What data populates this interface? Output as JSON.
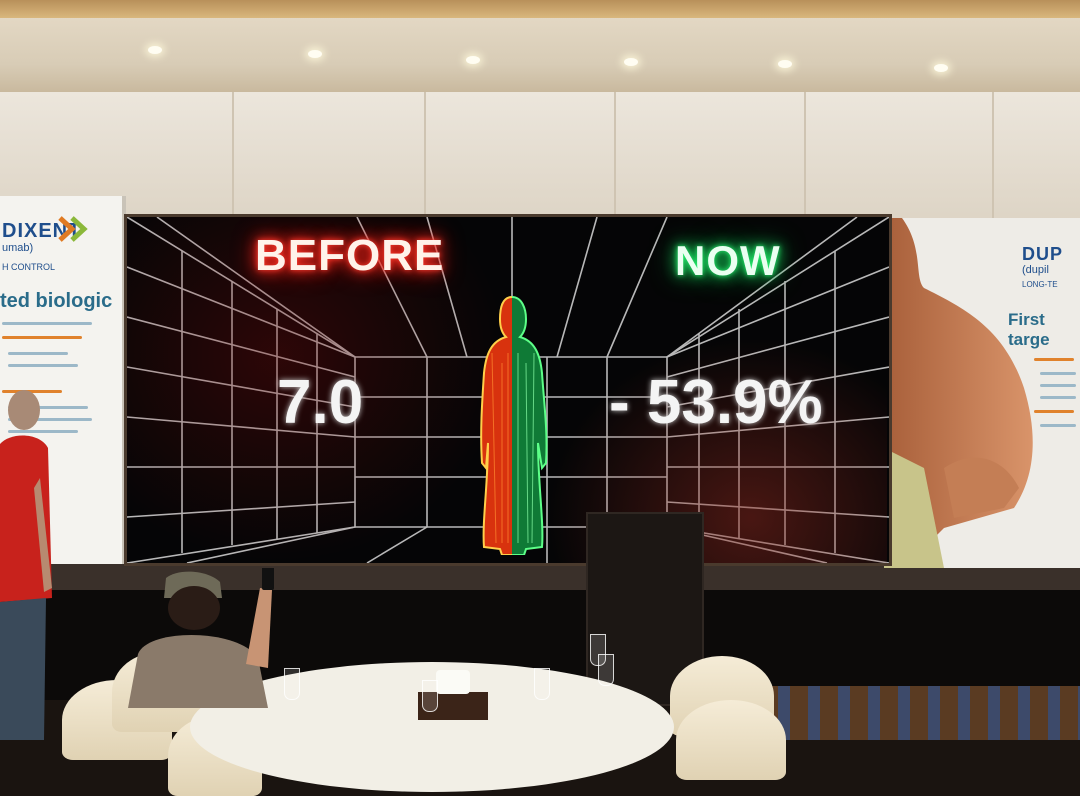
{
  "screen": {
    "before_label": "BEFORE",
    "now_label": "NOW",
    "before_value": "7.0",
    "now_value": "- 53.9%",
    "colors": {
      "before_glow": "#ff2a1e",
      "now_glow": "#18e060"
    }
  },
  "banner_left": {
    "brand": "DIXENT",
    "brand_sub": "umab)",
    "tag": "H CONTROL",
    "headline": "ted biologic"
  },
  "banner_right": {
    "brand": "DUP",
    "brand_sub": "(dupil",
    "tag": "LONG-TE",
    "headline": "First targe"
  }
}
